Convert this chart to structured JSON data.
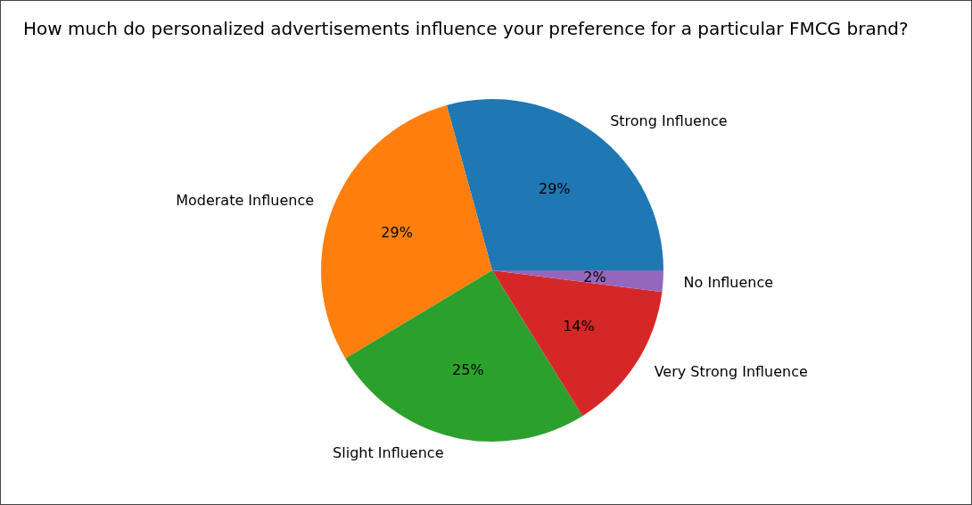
{
  "chart_data": {
    "type": "pie",
    "title": "How much do personalized advertisements influence your preference for a particular FMCG brand?",
    "categories": [
      "Strong Influence",
      "Moderate Influence",
      "Slight Influence",
      "Very Strong Influence",
      "No Influence"
    ],
    "values": [
      29,
      29,
      25,
      14,
      2
    ],
    "colors": [
      "#1f77b4",
      "#ff7f0e",
      "#2ca02c",
      "#d62728",
      "#9467bd"
    ],
    "value_labels": [
      "29%",
      "29%",
      "25%",
      "14%",
      "2%"
    ]
  }
}
